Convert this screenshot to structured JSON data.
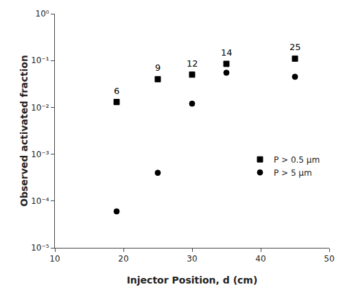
{
  "chart_data": {
    "type": "scatter",
    "xlabel": "Injector Position, d (cm)",
    "ylabel": "Observed activated fraction",
    "series": [
      {
        "name": "P > 0.5 μm",
        "x": [
          19,
          25,
          30,
          35,
          45
        ],
        "values": [
          0.013,
          0.04,
          0.05,
          0.085,
          0.11
        ],
        "marker": "square",
        "color": "black"
      },
      {
        "name": "P > 5 μm",
        "x": [
          19,
          25,
          30,
          35,
          45
        ],
        "values": [
          6e-05,
          0.0004,
          0.012,
          0.055,
          0.045
        ],
        "marker": "circle",
        "color": "black"
      }
    ],
    "annotations": [
      {
        "x": 19,
        "y": 0.013,
        "text": "6"
      },
      {
        "x": 25,
        "y": 0.04,
        "text": "9"
      },
      {
        "x": 30,
        "y": 0.05,
        "text": "12"
      },
      {
        "x": 35,
        "y": 0.085,
        "text": "14"
      },
      {
        "x": 45,
        "y": 0.11,
        "text": "25"
      }
    ],
    "xlim": [
      10,
      50
    ],
    "xticks": [
      10,
      20,
      30,
      40,
      50
    ],
    "ylim": [
      1e-05,
      1
    ],
    "yticks": [
      {
        "value": 1e-05,
        "label": "10⁻⁵"
      },
      {
        "value": 0.0001,
        "label": "10⁻⁴"
      },
      {
        "value": 0.001,
        "label": "10⁻³"
      },
      {
        "value": 0.01,
        "label": "10⁻²"
      },
      {
        "value": 0.1,
        "label": "10⁻¹"
      },
      {
        "value": 1,
        "label": "10⁰"
      }
    ],
    "log": "y",
    "grid": false,
    "legend": "right"
  }
}
